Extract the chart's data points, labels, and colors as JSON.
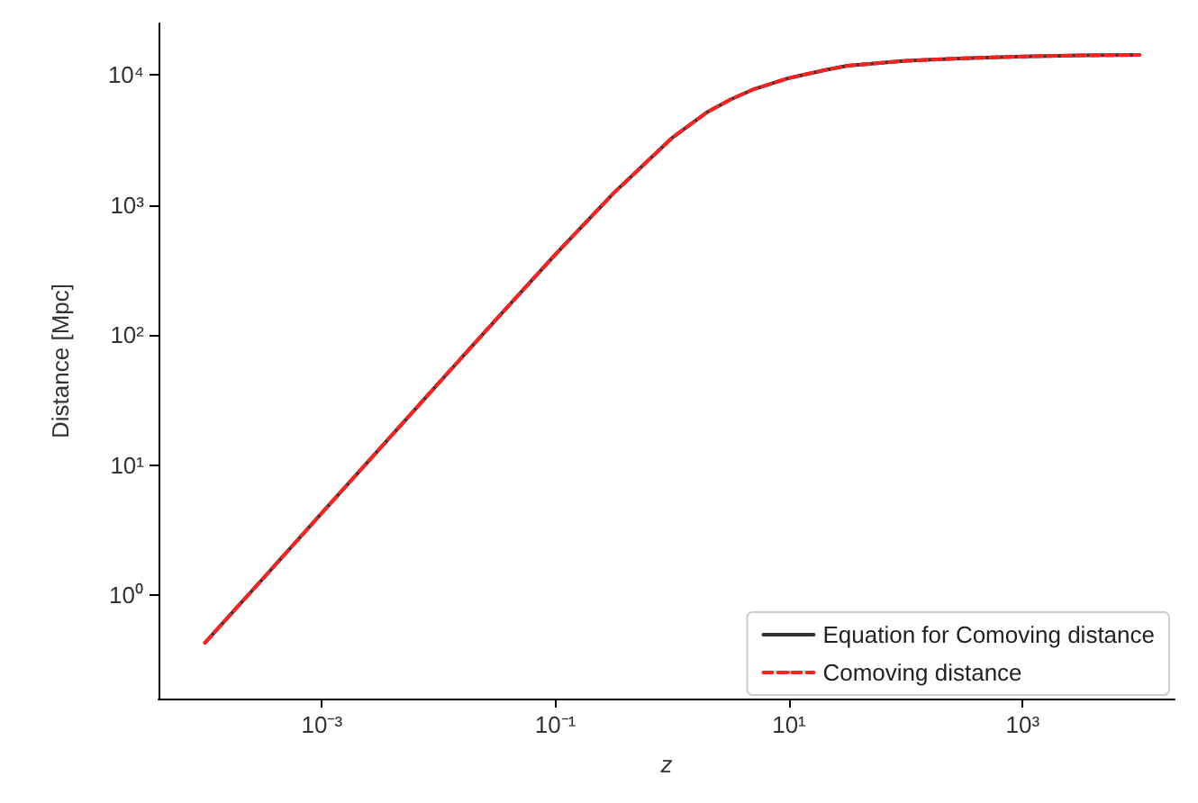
{
  "chart_data": {
    "type": "line",
    "xlabel": "z",
    "ylabel": "Distance [Mpc]",
    "log": "xy",
    "xlim": [
      4e-05,
      20000
    ],
    "ylim": [
      0.16,
      25000
    ],
    "xticks": [
      {
        "value": 0.001,
        "label": "10⁻³"
      },
      {
        "value": 0.1,
        "label": "10⁻¹"
      },
      {
        "value": 10,
        "label": "10¹"
      },
      {
        "value": 1000,
        "label": "10³"
      }
    ],
    "yticks": [
      {
        "value": 1,
        "label": "10⁰"
      },
      {
        "value": 10,
        "label": "10¹"
      },
      {
        "value": 100,
        "label": "10²"
      },
      {
        "value": 1000,
        "label": "10³"
      },
      {
        "value": 10000,
        "label": "10⁴"
      }
    ],
    "x": [
      0.0001,
      0.000316,
      0.001,
      0.00316,
      0.01,
      0.0316,
      0.1,
      0.316,
      1,
      2,
      3.16,
      5,
      10,
      20,
      31.6,
      100,
      316,
      1000,
      3162,
      10000
    ],
    "grid": false,
    "legend": "bottom right",
    "marker": "none",
    "series": [
      {
        "name": "Equation for Comoving distance",
        "color": "#333333",
        "line_style": "solid",
        "values": [
          0.43,
          1.35,
          4.28,
          13.5,
          42.7,
          134,
          418,
          1240,
          3300,
          5200,
          6500,
          7800,
          9500,
          10900,
          11800,
          12900,
          13500,
          13900,
          14200,
          14300
        ]
      },
      {
        "name": "Comoving distance",
        "color": "#ff2020",
        "line_style": "dashed",
        "values": [
          0.43,
          1.35,
          4.28,
          13.5,
          42.7,
          134,
          418,
          1240,
          3300,
          5200,
          6500,
          7800,
          9500,
          10900,
          11800,
          12900,
          13500,
          13900,
          14200,
          14300
        ]
      }
    ]
  }
}
